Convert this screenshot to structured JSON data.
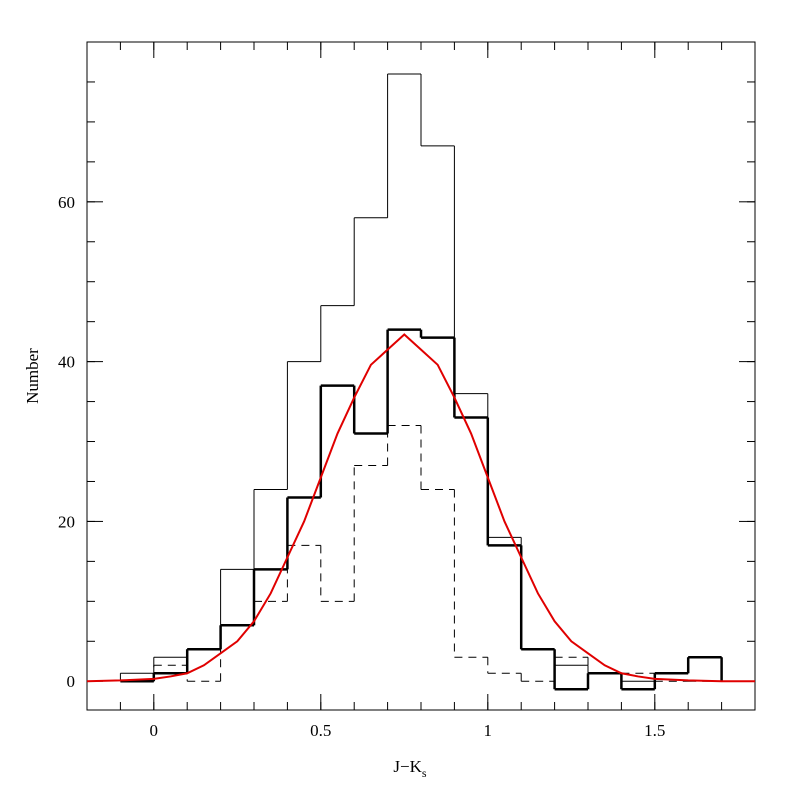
{
  "chart_data": {
    "type": "histogram",
    "xlabel": "J−K",
    "xlabel_subscript": "s",
    "ylabel": "Number",
    "bins": [
      -0.1,
      0,
      0.1,
      0.2,
      0.3,
      0.4,
      0.5,
      0.6,
      0.7,
      0.8,
      0.9,
      1.0,
      1.1,
      1.2,
      1.3,
      1.4,
      1.5,
      1.6,
      1.7
    ],
    "series": [
      {
        "style": "thin",
        "color": "#000000",
        "values": [
          1,
          3,
          4,
          14,
          24,
          40,
          47,
          58,
          76,
          67,
          36,
          18,
          4,
          2,
          1,
          0,
          1,
          3
        ]
      },
      {
        "style": "thick",
        "color": "#000000",
        "values": [
          0,
          1,
          4,
          7,
          14,
          23,
          37,
          31,
          44,
          43,
          33,
          17,
          4,
          -1,
          1,
          -1,
          1,
          3
        ]
      },
      {
        "style": "dashed",
        "color": "#000000",
        "values": [
          0,
          2,
          0,
          7,
          10,
          17,
          10,
          27,
          32,
          24,
          3,
          1,
          0,
          3,
          1,
          1,
          0,
          0
        ]
      }
    ],
    "curve": {
      "type": "line",
      "color": "#e00000",
      "x": [
        -0.2,
        -0.1,
        0,
        0.05,
        0.1,
        0.15,
        0.2,
        0.25,
        0.3,
        0.35,
        0.4,
        0.45,
        0.5,
        0.55,
        0.6,
        0.65,
        0.7,
        0.75,
        0.8,
        0.85,
        0.9,
        0.95,
        1.0,
        1.05,
        1.1,
        1.15,
        1.2,
        1.25,
        1.3,
        1.35,
        1.4,
        1.45,
        1.5,
        1.6,
        1.7,
        1.8
      ],
      "values": [
        0,
        0.1,
        0.3,
        0.6,
        1,
        2,
        3.5,
        5,
        7.5,
        11,
        15.5,
        20,
        25.5,
        31,
        35.5,
        39.6,
        41.5,
        43.4,
        41.5,
        39.6,
        35.5,
        31,
        25.5,
        20,
        15.5,
        11,
        7.5,
        5,
        3.5,
        2,
        1,
        0.6,
        0.3,
        0.1,
        0,
        0
      ]
    },
    "xlim": [
      -0.2,
      1.8
    ],
    "ylim": [
      -3.6,
      80
    ],
    "xticks": [
      0,
      0.5,
      1,
      1.5
    ],
    "yticks": [
      0,
      20,
      40,
      60
    ],
    "xminor": 0.1,
    "yminor": 5
  }
}
